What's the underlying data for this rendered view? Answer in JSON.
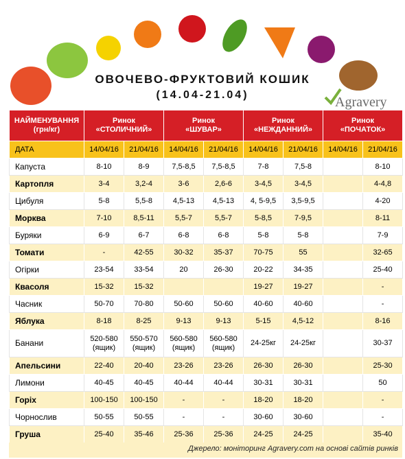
{
  "title": "ОВОЧЕВО-ФРУКТОВИЙ КОШИК",
  "subtitle": "(14.04-21.04)",
  "logo": "Agravery",
  "table": {
    "name_header": "НАЙМЕНУВАННЯ\n(грн/кг)",
    "markets": [
      "Ринок\n«СТОЛИЧНИЙ»",
      "Ринок\n«ШУВАР»",
      "Ринок\n«НЕЖДАННИЙ»",
      "Ринок\n«ПОЧАТОК»"
    ],
    "date_label": "ДАТА",
    "dates": [
      "14/04/16",
      "21/04/16",
      "14/04/16",
      "21/04/16",
      "14/04/16",
      "21/04/16",
      "14/04/16",
      "21/04/16"
    ],
    "rows": [
      [
        "Капуста",
        "8-10",
        "8-9",
        "7,5-8,5",
        "7,5-8,5",
        "7-8",
        "7,5-8",
        null,
        "8-10"
      ],
      [
        "Картопля",
        "3-4",
        "3,2-4",
        "3-6",
        "2,6-6",
        "3-4,5",
        "3-4,5",
        null,
        "4-4,8"
      ],
      [
        "Цибуля",
        "5-8",
        "5,5-8",
        "4,5-13",
        "4,5-13",
        "4, 5-9,5",
        "3,5-9,5",
        null,
        "4-20"
      ],
      [
        "Морква",
        "7-10",
        "8,5-11",
        "5,5-7",
        "5,5-7",
        "5-8,5",
        "7-9,5",
        null,
        "8-11"
      ],
      [
        "Буряки",
        "6-9",
        "6-7",
        "6-8",
        "6-8",
        "5-8",
        "5-8",
        null,
        "7-9"
      ],
      [
        "Томати",
        "-",
        "42-55",
        "30-32",
        "35-37",
        "70-75",
        "55",
        null,
        "32-65"
      ],
      [
        "Огірки",
        "23-54",
        "33-54",
        "20",
        "26-30",
        "20-22",
        "34-35",
        null,
        "25-40"
      ],
      [
        "Квасоля",
        "15-32",
        "15-32",
        null,
        null,
        "19-27",
        "19-27",
        null,
        "-"
      ],
      [
        "Часник",
        "50-70",
        "70-80",
        "50-60",
        "50-60",
        "40-60",
        "40-60",
        null,
        "-"
      ],
      [
        "Яблука",
        "8-18",
        "8-25",
        "9-13",
        "9-13",
        "5-15",
        "4,5-12",
        null,
        "8-16"
      ],
      [
        "Банани",
        "520-580\n(ящик)",
        "550-570\n(ящик)",
        "560-580\n(ящик)",
        "560-580\n(ящик)",
        "24-25кг",
        "24-25кг",
        null,
        "30-37"
      ],
      [
        "Апельсини",
        "22-40",
        "20-40",
        "23-26",
        "23-26",
        "26-30",
        "26-30",
        null,
        "25-30"
      ],
      [
        "Лимони",
        "40-45",
        "40-45",
        "40-44",
        "40-44",
        "30-31",
        "30-31",
        null,
        "50"
      ],
      [
        "Горіх",
        "100-150",
        "100-150",
        "-",
        "-",
        "18-20",
        "18-20",
        null,
        "-"
      ],
      [
        "Чорнослив",
        "50-55",
        "50-55",
        "-",
        "-",
        "30-60",
        "30-60",
        null,
        "-"
      ],
      [
        "Груша",
        "25-40",
        "35-46",
        "25-36",
        "25-36",
        "24-25",
        "24-25",
        null,
        "35-40"
      ]
    ]
  },
  "source": "Джерело: моніторинг Agravery.com на основі сайтів ринків"
}
